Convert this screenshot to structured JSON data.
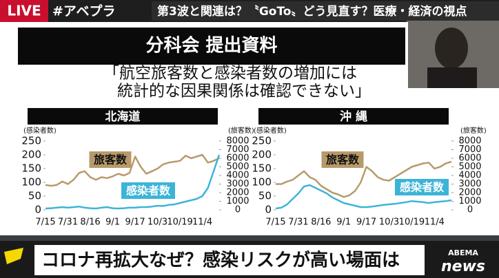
{
  "top_bar": {
    "live": "LIVE",
    "hashtag": "#アベプラ",
    "headline": "第3波と関連は？〝GoTo〟どう見直す？医療・経済の視点"
  },
  "slide": {
    "title": "分科会 提出資料",
    "quote": [
      "「航空旅客数と感染者数の増加には",
      "統計的な因果関係は確認できない」"
    ]
  },
  "bottom_bar": {
    "headline": "コロナ再拡大なぜ？感染リスクが高い場面は",
    "logo_top": "ABEMA",
    "logo_bottom": "news"
  },
  "chart_data": [
    {
      "type": "line",
      "title": "北海道",
      "y_label": "(感染者数)",
      "y2_label": "(旅客数)",
      "categories": [
        "7/15",
        null,
        null,
        null,
        "7/31",
        null,
        null,
        null,
        "8/16",
        null,
        null,
        null,
        "9/1",
        null,
        null,
        null,
        "9/17",
        null,
        null,
        null,
        "10/3",
        null,
        null,
        null,
        "10/19",
        null,
        null,
        null,
        "11/4",
        null,
        null,
        null
      ],
      "ylim": [
        0,
        250
      ],
      "yticks": [
        0,
        50,
        100,
        150,
        200,
        250
      ],
      "y2lim": [
        0,
        8000
      ],
      "y2ticks": [
        0,
        1000,
        2000,
        3000,
        4000,
        5000,
        6000,
        7000,
        8000
      ],
      "series": [
        {
          "name": "旅客数",
          "color": "#b89a6a",
          "axis": "y2",
          "values": [
            2900,
            2800,
            2900,
            3300,
            3000,
            3500,
            4300,
            4500,
            3800,
            3500,
            3800,
            3700,
            3900,
            4200,
            4000,
            4300,
            6200,
            5000,
            4200,
            4500,
            4800,
            5300,
            5500,
            5600,
            5700,
            6300,
            6000,
            6200,
            6400,
            5500,
            5700,
            6000
          ]
        },
        {
          "name": "感染者数",
          "color": "#3cb4d8",
          "values": [
            5,
            6,
            8,
            10,
            8,
            10,
            12,
            8,
            6,
            5,
            8,
            10,
            6,
            5,
            6,
            8,
            8,
            10,
            10,
            12,
            15,
            14,
            18,
            20,
            25,
            30,
            35,
            40,
            50,
            80,
            140,
            200
          ]
        }
      ]
    },
    {
      "type": "line",
      "title": "沖 縄",
      "y_label": "(感染者数)",
      "y2_label": "(旅客数)",
      "categories": [
        "7/15",
        null,
        null,
        null,
        "7/31",
        null,
        null,
        null,
        "8/16",
        null,
        null,
        null,
        "9/1",
        null,
        null,
        null,
        "9/17",
        null,
        null,
        null,
        "10/3",
        null,
        null,
        null,
        "10/19",
        null,
        null,
        null,
        "11/4",
        null,
        null,
        null
      ],
      "ylim": [
        0,
        250
      ],
      "yticks": [
        0,
        50,
        100,
        150,
        200,
        250
      ],
      "y2lim": [
        0,
        8000
      ],
      "y2ticks": [
        0,
        1000,
        2000,
        3000,
        4000,
        5000,
        6000,
        7000,
        8000
      ],
      "series": [
        {
          "name": "旅客数",
          "color": "#b89a6a",
          "axis": "y2",
          "values": [
            3000,
            3000,
            3300,
            3500,
            4000,
            4500,
            3800,
            3500,
            2800,
            2400,
            2000,
            1800,
            1500,
            1700,
            2200,
            3200,
            5000,
            4500,
            3800,
            3500,
            3400,
            3800,
            4200,
            4600,
            5000,
            5200,
            5400,
            5500,
            4800,
            5000,
            5400,
            5600
          ]
        },
        {
          "name": "感染者数",
          "color": "#3cb4d8",
          "values": [
            5,
            8,
            20,
            40,
            60,
            85,
            90,
            80,
            70,
            60,
            45,
            35,
            25,
            20,
            15,
            10,
            10,
            12,
            15,
            18,
            20,
            22,
            25,
            28,
            32,
            30,
            28,
            25,
            28,
            30,
            32,
            35
          ]
        }
      ]
    }
  ]
}
